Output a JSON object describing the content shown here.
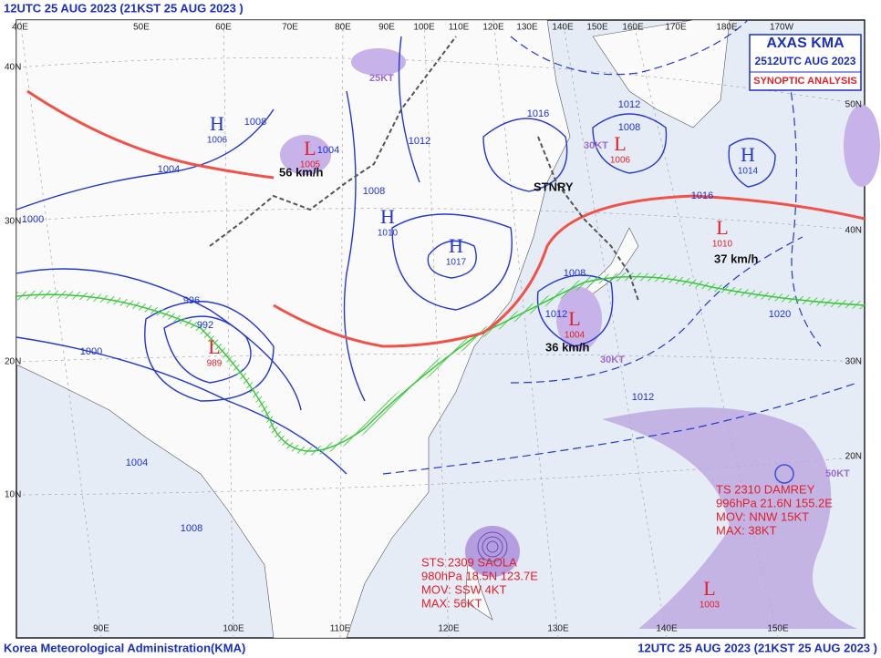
{
  "header": {
    "title": "12UTC 25 AUG 2023 (21KST 25 AUG 2023 )"
  },
  "footer": {
    "agency": "Korea Meteorological Administration(KMA)",
    "time": "12UTC 25 AUG 2023 (21KST 25 AUG 2023 )"
  },
  "title_box": {
    "line1": "AXAS KMA",
    "line2": "2512UTC AUG 2023",
    "line3": "SYNOPTIC ANALYSIS"
  },
  "longitude_labels_top": [
    "40E",
    "50E",
    "60E",
    "70E",
    "80E",
    "90E",
    "100E",
    "110E",
    "120E",
    "130E",
    "140E",
    "150E",
    "160E",
    "170E",
    "180E",
    "170W"
  ],
  "longitude_labels_bottom": [
    "90E",
    "100E",
    "110E",
    "120E",
    "130E",
    "140E",
    "150E"
  ],
  "latitude_labels_left": [
    "40N",
    "30N",
    "20N",
    "10N"
  ],
  "latitude_labels_right": [
    "50N",
    "40N",
    "30N",
    "20N"
  ],
  "storms": [
    {
      "lines": [
        "TS 2310 DAMREY",
        "996hPa 21.6N 155.2E",
        "MOV: NNW 15KT",
        "MAX: 38KT"
      ]
    },
    {
      "lines": [
        "STS 2309 SAOLA",
        "980hPa 18.5N 123.7E",
        "MOV: SSW 4KT",
        "MAX: 56KT"
      ]
    }
  ],
  "pressure_centers": [
    {
      "type": "L",
      "value": "989"
    },
    {
      "type": "H",
      "value": "1017"
    },
    {
      "type": "H",
      "value": "1006"
    },
    {
      "type": "L",
      "value": "1005"
    },
    {
      "type": "H",
      "value": "1010"
    },
    {
      "type": "L",
      "value": "1006"
    },
    {
      "type": "L",
      "value": "1010"
    },
    {
      "type": "L",
      "value": "1004"
    },
    {
      "type": "L",
      "value": "1003"
    },
    {
      "type": "H",
      "value": "1014"
    }
  ],
  "motion_labels": [
    "56 km/h",
    "37 km/h",
    "36 km/h",
    "STNRY",
    "30KT",
    "50KT",
    "25KT",
    "30KT"
  ],
  "isobar_labels": [
    "1000",
    "1004",
    "1008",
    "992",
    "996",
    "1000",
    "1004",
    "1008",
    "1012",
    "1016",
    "1008",
    "1012",
    "1016",
    "1020",
    "1012",
    "1008",
    "1004",
    "1008",
    "1012"
  ]
}
